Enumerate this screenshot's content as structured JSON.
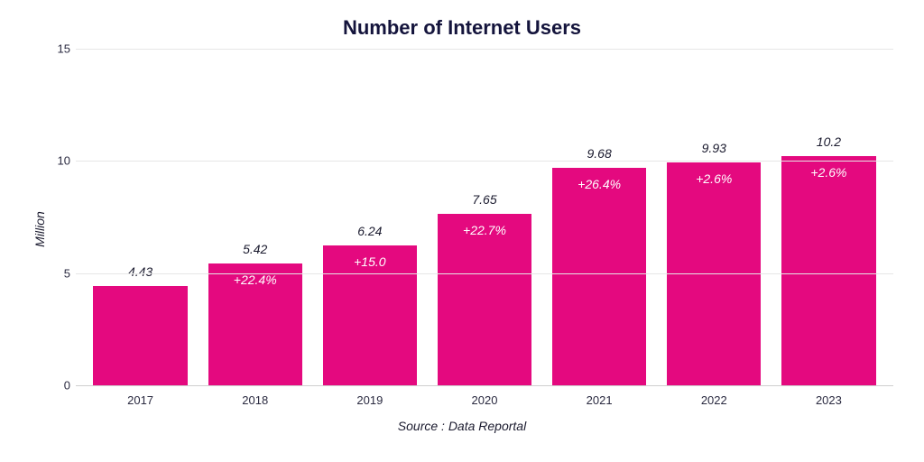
{
  "chart": {
    "type": "bar",
    "title": "Number of Internet Users",
    "title_fontsize": 22,
    "title_color": "#14143c",
    "ylabel": "Million",
    "ylabel_fontsize": 14,
    "source_text": "Source : Data Reportal",
    "background_color": "#ffffff",
    "grid_color": "#e6e6e6",
    "axis_color": "#cfcfcf",
    "ylim": [
      0,
      15
    ],
    "ytick_step": 5,
    "yticks": [
      "0",
      "5",
      "10",
      "15"
    ],
    "categories": [
      "2017",
      "2018",
      "2019",
      "2020",
      "2021",
      "2022",
      "2023"
    ],
    "values": [
      4.43,
      5.42,
      6.24,
      7.65,
      9.68,
      9.93,
      10.2
    ],
    "value_labels": [
      "4.43",
      "5.42",
      "6.24",
      "7.65",
      "9.68",
      "9.93",
      "10.2"
    ],
    "change_labels": [
      "",
      "+22.4%",
      "+15.0",
      "+22.7%",
      "+26.4%",
      "+2.6%",
      "+2.6%"
    ],
    "bar_color": "#e4097f",
    "inner_label_color": "#ffffff",
    "value_label_color": "#1a1a2e",
    "tick_label_color": "#2a2a40",
    "tick_fontsize": 13,
    "value_fontsize": 14,
    "bar_width": 0.82
  }
}
